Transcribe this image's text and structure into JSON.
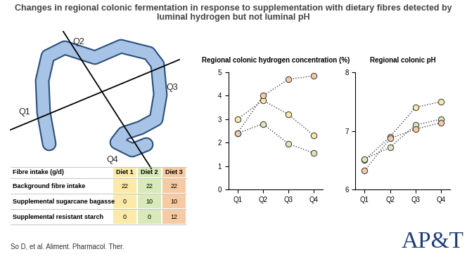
{
  "title": "Changes in regional colonic fermentation in response to supplementation with dietary fibres detected by luminal hydrogen but not luminal pH",
  "diagram": {
    "labels": [
      "Q1",
      "Q2",
      "Q3",
      "Q4"
    ]
  },
  "table": {
    "header": [
      "Fibre intake (g/d)",
      "Diet 1",
      "Diet 2",
      "Diet 3"
    ],
    "column_colors": [
      "#fbeaa8",
      "#d8eab9",
      "#f6cba3"
    ],
    "rows": [
      [
        "Background fibre intake",
        22,
        22,
        22
      ],
      [
        "Supplemental sugarcane bagasse",
        0,
        10,
        10
      ],
      [
        "Supplemental resistant starch",
        0,
        0,
        12
      ]
    ]
  },
  "chart_data": [
    {
      "type": "line",
      "title": "Regional colonic hydrogen concentration (%)",
      "categories": [
        "Q1",
        "Q2",
        "Q3",
        "Q4"
      ],
      "ylim": [
        0,
        5
      ],
      "yticks": [
        0,
        1,
        2,
        3,
        4,
        5
      ],
      "series": [
        {
          "color": "#fbeaa8",
          "marker": "o",
          "line_style": "dotted",
          "values": [
            3.0,
            3.8,
            3.2,
            2.3
          ]
        },
        {
          "color": "#d8eab9",
          "marker": "o",
          "line_style": "dotted",
          "values": [
            2.4,
            2.8,
            1.95,
            1.55
          ]
        },
        {
          "color": "#f6cba3",
          "marker": "o",
          "line_style": "dotted",
          "values": [
            2.4,
            4.0,
            4.7,
            4.85
          ]
        }
      ]
    },
    {
      "type": "line",
      "title": "Regional colonic pH",
      "categories": [
        "Q1",
        "Q2",
        "Q3",
        "Q4"
      ],
      "ylim": [
        6,
        8
      ],
      "yticks": [
        6,
        7,
        8
      ],
      "series": [
        {
          "color": "#fbeaa8",
          "marker": "o",
          "line_style": "dotted",
          "values": [
            6.5,
            6.9,
            7.4,
            7.5
          ]
        },
        {
          "color": "#d8eab9",
          "marker": "o",
          "line_style": "dotted",
          "values": [
            6.52,
            6.72,
            7.1,
            7.2
          ]
        },
        {
          "color": "#f6cba3",
          "marker": "o",
          "line_style": "dotted",
          "values": [
            6.32,
            6.87,
            7.03,
            7.14
          ]
        }
      ]
    }
  ],
  "footer": {
    "citation": "So D, et al. Aliment. Pharmacol. Ther.",
    "logo": "AP&T"
  }
}
